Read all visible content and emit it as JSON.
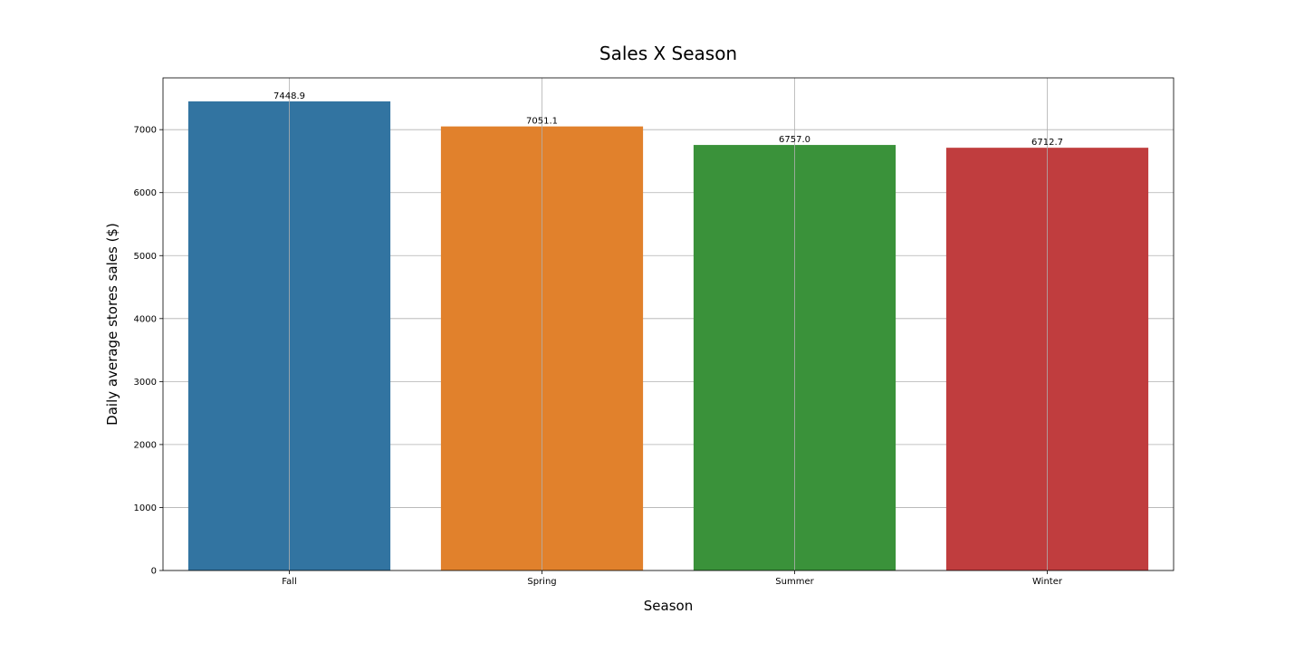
{
  "chart_data": {
    "type": "bar",
    "title": "Sales X Season",
    "xlabel": "Season",
    "ylabel": "Daily average stores sales ($)",
    "categories": [
      "Fall",
      "Spring",
      "Summer",
      "Winter"
    ],
    "values": [
      7448.9,
      7051.1,
      6757.0,
      6712.7
    ],
    "value_labels": [
      "7448.9",
      "7051.1",
      "6757.0",
      "6712.7"
    ],
    "colors": [
      "#3274a1",
      "#e1812c",
      "#3a923a",
      "#c03d3e"
    ],
    "ylim": [
      0,
      7822
    ],
    "yticks": [
      0,
      1000,
      2000,
      3000,
      4000,
      5000,
      6000,
      7000
    ],
    "ytick_labels": [
      "0",
      "1000",
      "2000",
      "3000",
      "4000",
      "5000",
      "6000",
      "7000"
    ],
    "grid": true,
    "legend": "none"
  }
}
